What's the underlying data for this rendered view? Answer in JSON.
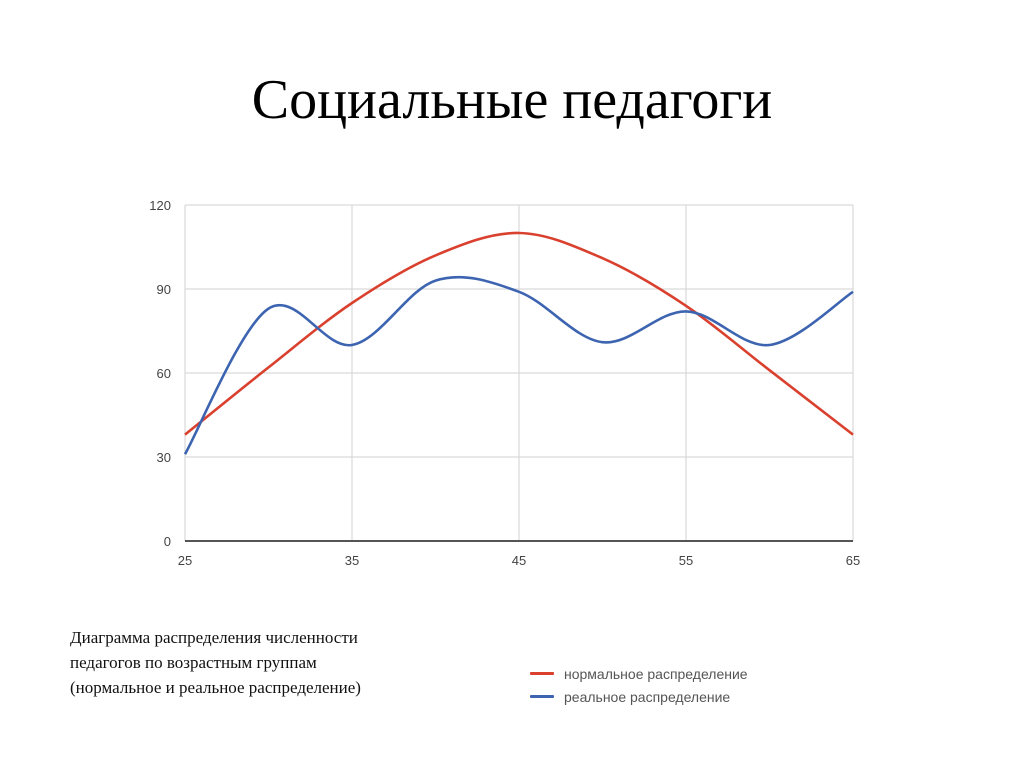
{
  "slide": {
    "title": "Социальные педагоги",
    "caption_lines": [
      "Диаграмма распределения численности",
      "педагогов по возрастным группам",
      "(нормальное и реальное распределение)"
    ]
  },
  "colors": {
    "normal": "#d9412e",
    "real": "#3d64b0",
    "grid": "#d9d9d9",
    "axis": "#555555"
  },
  "chart_data": {
    "type": "line",
    "title": "",
    "xlabel": "",
    "ylabel": "",
    "x": [
      25,
      30,
      35,
      40,
      45,
      50,
      55,
      60,
      65
    ],
    "x_ticks": [
      25,
      35,
      45,
      55,
      65
    ],
    "y_ticks": [
      0,
      30,
      60,
      90,
      120
    ],
    "xlim": [
      25,
      65
    ],
    "ylim": [
      0,
      120
    ],
    "grid": true,
    "smooth": true,
    "legend_position": "bottom-right",
    "series": [
      {
        "name": "нормальное распределение",
        "color": "#d9412e",
        "values": [
          38,
          62,
          85,
          102,
          110,
          101,
          84,
          61,
          38
        ]
      },
      {
        "name": "реальное распределение",
        "color": "#3d64b0",
        "values": [
          31,
          83,
          70,
          93,
          89,
          71,
          82,
          70,
          89
        ]
      }
    ]
  },
  "legend": {
    "items": [
      {
        "label": "нормальное распределение",
        "color": "#d9412e"
      },
      {
        "label": "реальное распределение",
        "color": "#3d64b0"
      }
    ]
  }
}
